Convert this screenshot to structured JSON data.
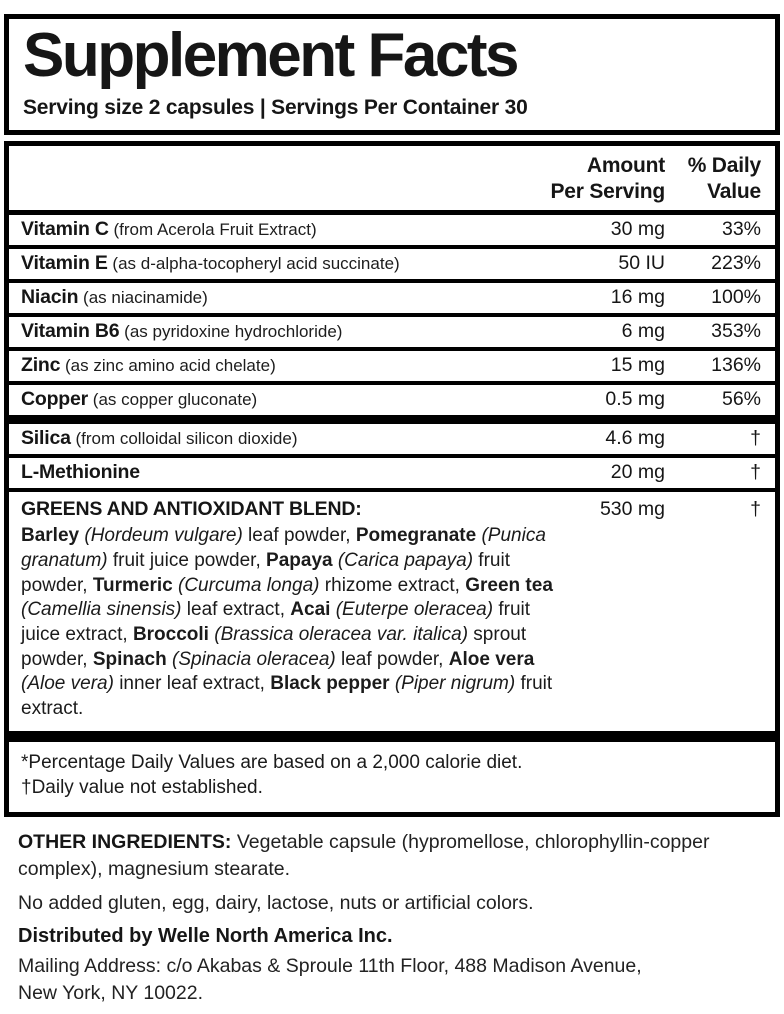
{
  "panel": {
    "title": "Supplement Facts",
    "serving_line": "Serving size 2 capsules | Servings Per Container 30",
    "header": {
      "amount_line1": "Amount",
      "amount_line2": "Per Serving",
      "daily_line1": "% Daily",
      "daily_line2": "Value"
    },
    "rows": [
      {
        "name": "Vitamin C",
        "qualifier": "(from Acerola Fruit Extract)",
        "amount": "30 mg",
        "daily_value": "33%"
      },
      {
        "name": "Vitamin E",
        "qualifier": "(as d-alpha-tocopheryl acid succinate)",
        "amount": "50 IU",
        "daily_value": "223%"
      },
      {
        "name": "Niacin",
        "qualifier": "(as niacinamide)",
        "amount": "16 mg",
        "daily_value": "100%"
      },
      {
        "name": "Vitamin B6",
        "qualifier": "(as pyridoxine hydrochloride)",
        "amount": "6 mg",
        "daily_value": "353%"
      },
      {
        "name": "Zinc",
        "qualifier": "(as zinc amino acid chelate)",
        "amount": "15 mg",
        "daily_value": "136%"
      },
      {
        "name": "Copper",
        "qualifier": "(as copper gluconate)",
        "amount": "0.5 mg",
        "daily_value": "56%"
      }
    ],
    "rows_no_dv": [
      {
        "name": "Silica",
        "qualifier": "(from colloidal silicon dioxide)",
        "amount": "4.6 mg",
        "daily_value": "†"
      },
      {
        "name": "L-Methionine",
        "qualifier": "",
        "amount": "20 mg",
        "daily_value": "†"
      }
    ],
    "blend": {
      "heading": "GREENS AND ANTIOXIDANT BLEND:",
      "amount": "530 mg",
      "daily_value": "†",
      "description_segments": [
        {
          "t": "Barley",
          "s": "bold"
        },
        {
          "t": " (Hordeum vulgare)",
          "s": "italic"
        },
        {
          "t": " leaf powder, ",
          "s": "normal"
        },
        {
          "t": "Pomegranate",
          "s": "bold"
        },
        {
          "t": " (Punica granatum)",
          "s": "italic"
        },
        {
          "t": " fruit juice powder, ",
          "s": "normal"
        },
        {
          "t": "Papaya",
          "s": "bold"
        },
        {
          "t": " (Carica papaya)",
          "s": "italic"
        },
        {
          "t": " fruit powder, ",
          "s": "normal"
        },
        {
          "t": "Turmeric",
          "s": "bold"
        },
        {
          "t": " (Curcuma longa)",
          "s": "italic"
        },
        {
          "t": " rhizome extract, ",
          "s": "normal"
        },
        {
          "t": "Green tea",
          "s": "bold"
        },
        {
          "t": " (Camellia sinensis)",
          "s": "italic"
        },
        {
          "t": " leaf extract, ",
          "s": "normal"
        },
        {
          "t": "Acai",
          "s": "bold"
        },
        {
          "t": " (Euterpe oleracea)",
          "s": "italic"
        },
        {
          "t": " fruit juice extract, ",
          "s": "normal"
        },
        {
          "t": "Broccoli",
          "s": "bold"
        },
        {
          "t": " (Brassica oleracea var. italica)",
          "s": "italic"
        },
        {
          "t": " sprout powder, ",
          "s": "normal"
        },
        {
          "t": "Spinach",
          "s": "bold"
        },
        {
          "t": " (Spinacia oleracea)",
          "s": "italic"
        },
        {
          "t": " leaf powder, ",
          "s": "normal"
        },
        {
          "t": "Aloe vera",
          "s": "bold"
        },
        {
          "t": " (Aloe vera)",
          "s": "italic"
        },
        {
          "t": " inner leaf extract, ",
          "s": "normal"
        },
        {
          "t": "Black pepper",
          "s": "bold"
        },
        {
          "t": " (Piper nigrum)",
          "s": "italic"
        },
        {
          "t": " fruit extract.",
          "s": "normal"
        }
      ]
    },
    "footnotes": [
      "*Percentage Daily Values are based on a 2,000 calorie diet.",
      "†Daily value not established."
    ]
  },
  "below_panel": {
    "other_ingredients_label": "OTHER INGREDIENTS:",
    "other_ingredients_text": " Vegetable capsule (hypromellose, chlorophyllin-copper complex), magnesium stearate.",
    "no_added": "No added gluten, egg, dairy, lactose, nuts or artificial colors.",
    "distributed_by": "Distributed by Welle North America Inc.",
    "mailing_line1": "Mailing Address: c/o Akabas & Sproule 11th Floor, 488 Madison Avenue,",
    "mailing_line2": "New York, NY 10022."
  },
  "colors": {
    "background": "#ffffff",
    "border": "#000000",
    "text": "#161616"
  }
}
